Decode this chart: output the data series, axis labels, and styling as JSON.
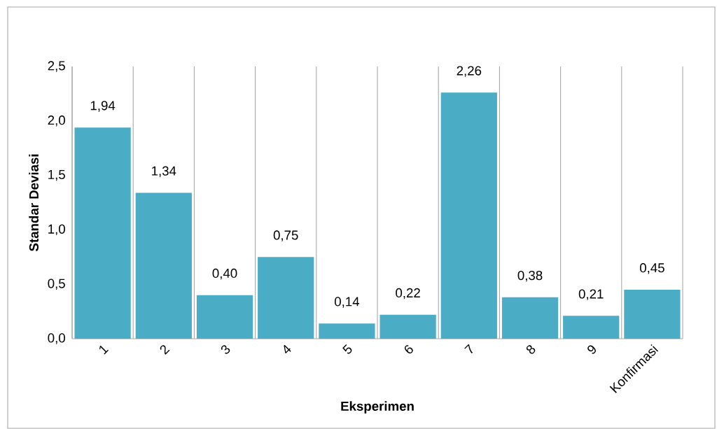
{
  "chart_data": {
    "type": "bar",
    "xlabel": "Eksperimen",
    "ylabel": "Standar Deviasi",
    "categories": [
      "1",
      "2",
      "3",
      "4",
      "5",
      "6",
      "7",
      "8",
      "9",
      "Konfirmasi"
    ],
    "values": [
      1.94,
      1.34,
      0.4,
      0.75,
      0.14,
      0.22,
      2.26,
      0.38,
      0.21,
      0.45
    ],
    "value_labels": [
      "1,94",
      "1,34",
      "0,40",
      "0,75",
      "0,14",
      "0,22",
      "2,26",
      "0,38",
      "0,21",
      "0,45"
    ],
    "color": "#4bacc6",
    "ylim": [
      0,
      2.5
    ],
    "yticks": [
      {
        "value": 0,
        "label": "0,0"
      },
      {
        "value": 0.5,
        "label": "0,5"
      },
      {
        "value": 1,
        "label": "1,0"
      },
      {
        "value": 1.5,
        "label": "1,5"
      },
      {
        "value": 2,
        "label": "2,0"
      },
      {
        "value": 2.5,
        "label": "2,5"
      }
    ],
    "grid": "x"
  }
}
